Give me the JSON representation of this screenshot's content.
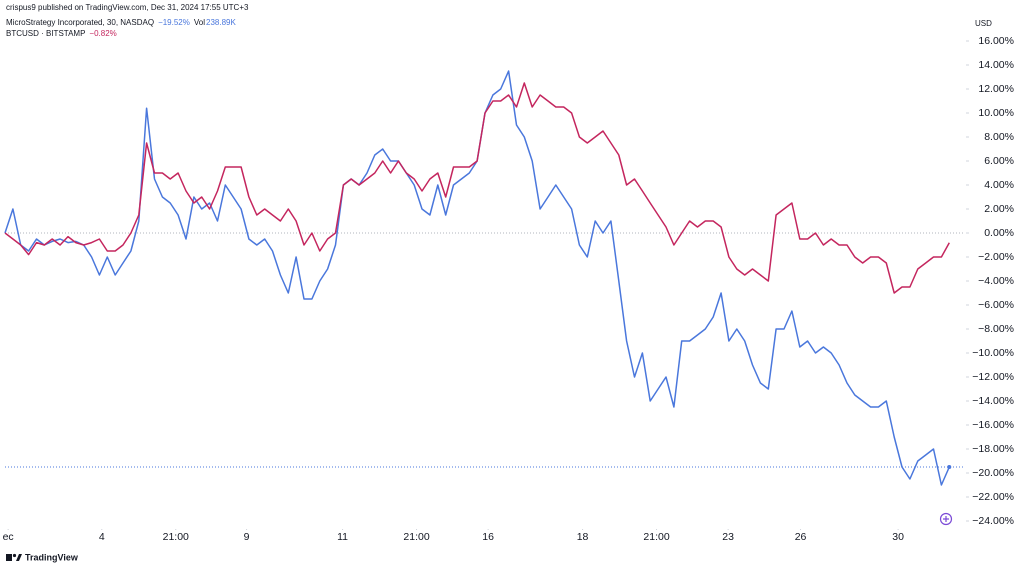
{
  "chart_data": {
    "type": "line",
    "publisher": "crispus9 published on TradingView.com, Dec 31, 2024 17:55 UTC+3",
    "currency": "USD",
    "brand": "TradingView",
    "xlim": [
      0,
      122
    ],
    "xticks": [
      {
        "value": 0.4,
        "label": "ec"
      },
      {
        "value": 12.3,
        "label": "4"
      },
      {
        "value": 21.7,
        "label": "21:00"
      },
      {
        "value": 30.7,
        "label": "9"
      },
      {
        "value": 42.9,
        "label": "11"
      },
      {
        "value": 52.3,
        "label": "21:00"
      },
      {
        "value": 61.4,
        "label": "16"
      },
      {
        "value": 73.4,
        "label": "18"
      },
      {
        "value": 82.8,
        "label": "21:00"
      },
      {
        "value": 91.9,
        "label": "23"
      },
      {
        "value": 101.1,
        "label": "26"
      },
      {
        "value": 113.5,
        "label": "30"
      }
    ],
    "ylim": [
      -24.75,
      17.75
    ],
    "yticks": [
      {
        "value": 16,
        "label": "16.00%"
      },
      {
        "value": 14,
        "label": "14.00%"
      },
      {
        "value": 12,
        "label": "12.00%"
      },
      {
        "value": 10,
        "label": "10.00%"
      },
      {
        "value": 8,
        "label": "8.00%"
      },
      {
        "value": 6,
        "label": "6.00%"
      },
      {
        "value": 4,
        "label": "4.00%"
      },
      {
        "value": 2,
        "label": "2.00%"
      },
      {
        "value": 0,
        "label": "0.00%"
      },
      {
        "value": -2,
        "label": "−2.00%"
      },
      {
        "value": -4,
        "label": "−4.00%"
      },
      {
        "value": -6,
        "label": "−6.00%"
      },
      {
        "value": -8,
        "label": "−8.00%"
      },
      {
        "value": -10,
        "label": "−10.00%"
      },
      {
        "value": -12,
        "label": "−12.00%"
      },
      {
        "value": -14,
        "label": "−14.00%"
      },
      {
        "value": -16,
        "label": "−16.00%"
      },
      {
        "value": -18,
        "label": "−18.00%"
      },
      {
        "value": -20,
        "label": "−20.00%"
      },
      {
        "value": -22,
        "label": "−22.00%"
      },
      {
        "value": -24,
        "label": "−24.00%"
      }
    ],
    "series": [
      {
        "name": "MicroStrategy Incorporated, 30, NASDAQ",
        "color": "#4a77dc",
        "change": "−19.52%",
        "volume_label": "Vol",
        "volume": "238.89K",
        "values": [
          0,
          2,
          -1,
          -1.5,
          -0.5,
          -1,
          -0.7,
          -0.5,
          -0.8,
          -0.7,
          -1,
          -2,
          -3.5,
          -2,
          -3.5,
          -2.5,
          -1.5,
          1,
          10.4,
          4.5,
          3,
          2.5,
          1.5,
          -0.5,
          3,
          2,
          2.5,
          1,
          4,
          3,
          2,
          -0.5,
          -1,
          -0.5,
          -1.5,
          -3.5,
          -5,
          -2,
          -5.5,
          -5.5,
          -4,
          -3,
          -1,
          4,
          4.5,
          4,
          5,
          6.5,
          7,
          6,
          6,
          5,
          4,
          2,
          1.5,
          4,
          1.5,
          4,
          4.5,
          5,
          6,
          10,
          11.5,
          12,
          13.5,
          9,
          8,
          6,
          2,
          3,
          4,
          3,
          2,
          -1,
          -2,
          1,
          0,
          1,
          -4,
          -9,
          -12,
          -10,
          -14,
          -13,
          -12,
          -14.5,
          -9,
          -9,
          -8.5,
          -8,
          -7,
          -5,
          -9,
          -8,
          -9,
          -11,
          -12.5,
          -13,
          -8,
          -8,
          -6.5,
          -9.5,
          -9,
          -10,
          -9.5,
          -10,
          -11,
          -12.5,
          -13.5,
          -14,
          -14.5,
          -14.5,
          -14,
          -17,
          -19.5,
          -20.5,
          -19,
          -18.5,
          -18,
          -21,
          -19.5
        ]
      },
      {
        "name": "BTCUSD · BITSTAMP",
        "color": "#c4265e",
        "change": "−0.82%",
        "values": [
          0,
          -0.5,
          -1,
          -1.8,
          -0.8,
          -1,
          -0.5,
          -1,
          -0.3,
          -0.8,
          -1,
          -0.8,
          -0.5,
          -1.5,
          -1.5,
          -1,
          0,
          1.5,
          7.5,
          5,
          5,
          4.5,
          5,
          3.5,
          2.5,
          3,
          2,
          3.5,
          5.5,
          5.5,
          5.5,
          3,
          1.5,
          2,
          1.5,
          1,
          2,
          1,
          -1,
          0,
          -1.5,
          -0.5,
          0,
          4,
          4.5,
          4,
          4.5,
          5,
          6,
          5,
          6,
          5,
          4.5,
          3.5,
          4.5,
          5,
          3,
          5.5,
          5.5,
          5.5,
          6,
          10,
          11,
          11,
          11.5,
          10.5,
          12.5,
          10.5,
          11.5,
          11,
          10.5,
          10.5,
          10,
          8,
          7.5,
          8,
          8.5,
          7.5,
          6.5,
          4,
          4.5,
          3.5,
          2.5,
          1.5,
          0.5,
          -1,
          0,
          1,
          0.5,
          1,
          1,
          0.5,
          -2,
          -3,
          -3.5,
          -3,
          -3.5,
          -4,
          1.5,
          2,
          2.5,
          -0.5,
          -0.5,
          0,
          -1,
          -0.5,
          -1,
          -1,
          -2,
          -2.5,
          -2,
          -2,
          -2.5,
          -5,
          -4.5,
          -4.5,
          -3,
          -2.5,
          -2,
          -2,
          -0.82
        ]
      }
    ]
  }
}
